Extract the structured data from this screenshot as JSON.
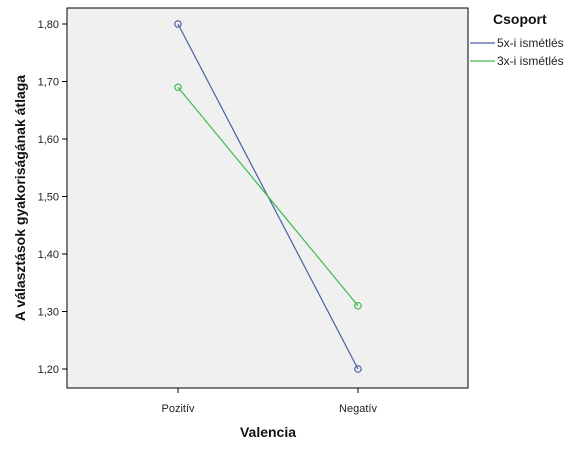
{
  "chart_data": {
    "type": "line",
    "xlabel": "Valencia",
    "ylabel": "A választások gyakoriságának átlaga",
    "categories": [
      "Pozitív",
      "Negatív"
    ],
    "ylim": [
      1.15,
      1.85
    ],
    "yticks": [
      "1,20",
      "1,30",
      "1,40",
      "1,50",
      "1,60",
      "1,70",
      "1,80"
    ],
    "ytick_values": [
      1.2,
      1.3,
      1.4,
      1.5,
      1.6,
      1.7,
      1.8
    ],
    "grid": false,
    "legend": {
      "title": "Csoport",
      "placement": "right"
    },
    "series": [
      {
        "name": "5x-i ismétlés",
        "values": [
          1.8,
          1.2
        ],
        "color": "#4b5fa8",
        "marker": "circle-open"
      },
      {
        "name": "3x-i ismétlés",
        "values": [
          1.69,
          1.31
        ],
        "color": "#3cbd4b",
        "marker": "circle-open"
      }
    ],
    "plot_background": "#f0f0f0"
  }
}
